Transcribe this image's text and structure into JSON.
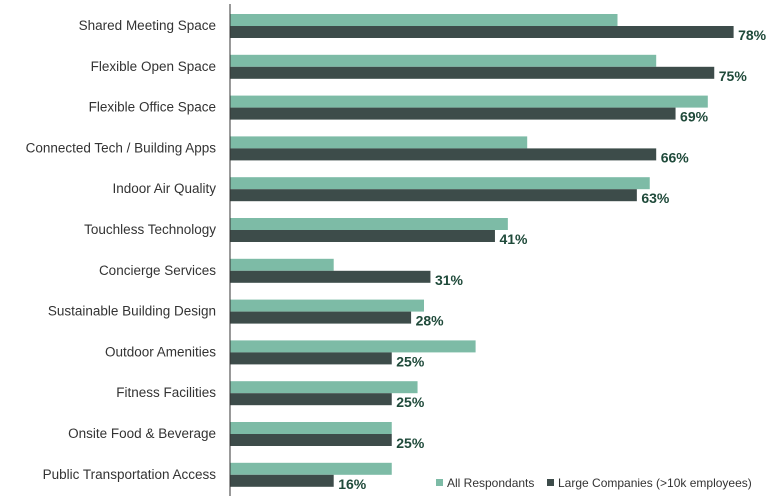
{
  "chart_data": {
    "type": "bar",
    "orientation": "horizontal",
    "categories": [
      "Shared Meeting Space",
      "Flexible Open Space",
      "Flexible Office Space",
      "Connected Tech / Building Apps",
      "Indoor Air Quality",
      "Touchless Technology",
      "Concierge Services",
      "Sustainable Building Design",
      "Outdoor Amenities",
      "Fitness Facilities",
      "Onsite Food & Beverage",
      "Public Transportation Access"
    ],
    "series": [
      {
        "name": "All Respondants",
        "color": "#7dbba6",
        "values": [
          60,
          66,
          74,
          46,
          65,
          43,
          16,
          30,
          38,
          29,
          25,
          25
        ]
      },
      {
        "name": "Large Companies (>10k employees)",
        "color": "#3d4c4a",
        "values": [
          78,
          75,
          69,
          66,
          63,
          41,
          31,
          28,
          25,
          25,
          25,
          16
        ],
        "data_labels": [
          "78%",
          "75%",
          "69%",
          "66%",
          "63%",
          "41%",
          "31%",
          "28%",
          "25%",
          "25%",
          "25%",
          "16%"
        ]
      }
    ],
    "xlim": [
      0,
      100
    ],
    "grid": false,
    "legend_position": "bottom-right"
  }
}
